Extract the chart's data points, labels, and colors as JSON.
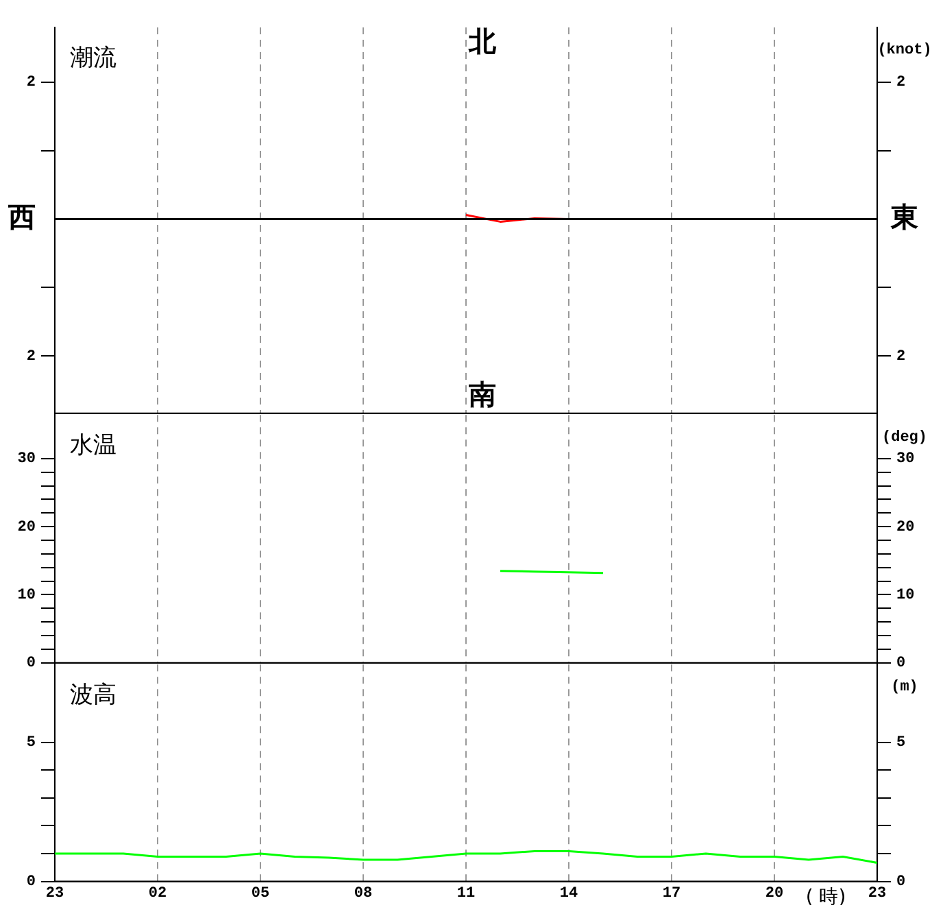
{
  "chart_data": [
    {
      "type": "line",
      "title": "潮流",
      "y2label": "(knot)",
      "annotations": [
        "北",
        "南",
        "西",
        "東"
      ],
      "categories": [
        "23",
        null,
        null,
        "02",
        null,
        null,
        "05",
        null,
        null,
        "08",
        null,
        null,
        "11",
        null,
        null,
        "14",
        null,
        null,
        "17",
        null,
        null,
        "20",
        null,
        null,
        "23"
      ],
      "series": [
        {
          "color": "#ff0000",
          "values": [
            null,
            null,
            null,
            null,
            null,
            null,
            null,
            null,
            null,
            null,
            null,
            null,
            0.06,
            -0.04,
            0.01,
            0,
            0,
            null,
            null,
            null,
            null,
            null,
            null,
            null,
            null
          ]
        }
      ],
      "ylim": [
        -2.84,
        2.8
      ],
      "yticks": [
        {
          "value": -2,
          "label": "2"
        },
        {
          "value": -1,
          "label": null
        },
        {
          "value": 1,
          "label": null
        },
        2
      ],
      "y2lim": [
        -2.84,
        2.8
      ],
      "y2ticks": [
        {
          "value": -2,
          "label": "2"
        },
        {
          "value": -1,
          "label": null
        },
        {
          "value": 1,
          "label": null
        },
        2
      ],
      "ref_lines": [
        {
          "axis": "y",
          "value": 0,
          "color": "#000000"
        }
      ],
      "grid": "x",
      "tick_labels": "y",
      "marker": "none"
    },
    {
      "type": "line",
      "title": "水温",
      "y2label": "(deg)",
      "categories": [
        "23",
        null,
        null,
        "02",
        null,
        null,
        "05",
        null,
        null,
        "08",
        null,
        null,
        "11",
        null,
        null,
        "14",
        null,
        null,
        "17",
        null,
        null,
        "20",
        null,
        null,
        "23"
      ],
      "series": [
        {
          "color": "#00ff00",
          "values": [
            null,
            null,
            null,
            null,
            null,
            null,
            null,
            null,
            null,
            null,
            null,
            null,
            null,
            13.5,
            13.4,
            13.3,
            13.2,
            null,
            null,
            null,
            null,
            null,
            null,
            null,
            null
          ]
        }
      ],
      "ylim": [
        0,
        36.4
      ],
      "yticks": [
        0,
        {
          "value": 2,
          "label": null
        },
        {
          "value": 4,
          "label": null
        },
        {
          "value": 6,
          "label": null
        },
        {
          "value": 8,
          "label": null
        },
        10,
        {
          "value": 12,
          "label": null
        },
        {
          "value": 14,
          "label": null
        },
        {
          "value": 16,
          "label": null
        },
        {
          "value": 18,
          "label": null
        },
        20,
        {
          "value": 22,
          "label": null
        },
        {
          "value": 24,
          "label": null
        },
        {
          "value": 26,
          "label": null
        },
        {
          "value": 28,
          "label": null
        },
        30
      ],
      "y2lim": [
        0,
        36.4
      ],
      "y2ticks": [
        0,
        {
          "value": 2,
          "label": null
        },
        {
          "value": 4,
          "label": null
        },
        {
          "value": 6,
          "label": null
        },
        {
          "value": 8,
          "label": null
        },
        10,
        {
          "value": 12,
          "label": null
        },
        {
          "value": 14,
          "label": null
        },
        {
          "value": 16,
          "label": null
        },
        {
          "value": 18,
          "label": null
        },
        20,
        {
          "value": 22,
          "label": null
        },
        {
          "value": 24,
          "label": null
        },
        {
          "value": 26,
          "label": null
        },
        {
          "value": 28,
          "label": null
        },
        30
      ],
      "grid": "x",
      "tick_labels": "y",
      "marker": "none"
    },
    {
      "type": "line",
      "title": "波高",
      "y2label": "(m)",
      "xlabel": "( 時)",
      "categories": [
        "23",
        null,
        null,
        "02",
        null,
        null,
        "05",
        null,
        null,
        "08",
        null,
        null,
        "11",
        null,
        null,
        "14",
        null,
        null,
        "17",
        null,
        null,
        "20",
        null,
        null,
        "23"
      ],
      "series": [
        {
          "color": "#00ff00",
          "values": [
            1.0,
            1.0,
            1.0,
            0.89,
            0.89,
            0.89,
            1.0,
            0.89,
            0.85,
            0.78,
            0.78,
            0.89,
            1.0,
            1.0,
            1.09,
            1.09,
            1.0,
            0.89,
            0.89,
            1.0,
            0.89,
            0.89,
            0.78,
            0.89,
            0.67
          ]
        }
      ],
      "ylim": [
        0,
        7.8
      ],
      "yticks": [
        0,
        {
          "value": 1,
          "label": null
        },
        {
          "value": 2,
          "label": null
        },
        {
          "value": 3,
          "label": null
        },
        {
          "value": 4,
          "label": null
        },
        5
      ],
      "y2lim": [
        0,
        7.8
      ],
      "y2ticks": [
        0,
        {
          "value": 1,
          "label": null
        },
        {
          "value": 2,
          "label": null
        },
        {
          "value": 3,
          "label": null
        },
        {
          "value": 4,
          "label": null
        },
        5
      ],
      "grid": "x",
      "marker": "none"
    }
  ]
}
